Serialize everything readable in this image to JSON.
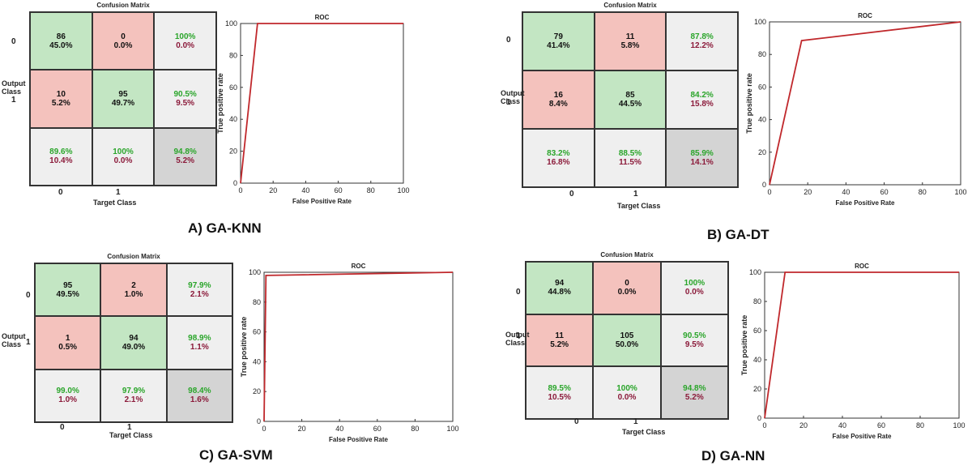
{
  "panels": [
    {
      "caption": "A) GA-KNN",
      "cm": {
        "title": "Confusion Matrix",
        "output_label": "Output Class",
        "target_label": "Target Class",
        "row_labels": [
          "0",
          "1"
        ],
        "col_labels": [
          "0",
          "1"
        ],
        "cells": [
          [
            {
              "a": "86",
              "b": "45.0%"
            },
            {
              "a": "0",
              "b": "0.0%"
            },
            {
              "a": "100%",
              "b": "0.0%"
            }
          ],
          [
            {
              "a": "10",
              "b": "5.2%"
            },
            {
              "a": "95",
              "b": "49.7%"
            },
            {
              "a": "90.5%",
              "b": "9.5%"
            }
          ],
          [
            {
              "a": "89.6%",
              "b": "10.4%"
            },
            {
              "a": "100%",
              "b": "0.0%"
            },
            {
              "a": "94.8%",
              "b": "5.2%"
            }
          ]
        ]
      },
      "roc": {
        "title": "ROC",
        "xlabel": "False Positive Rate",
        "ylabel": "True positive rate",
        "xticks": [
          "0",
          "20",
          "40",
          "60",
          "80",
          "100"
        ],
        "yticks": [
          "0",
          "20",
          "40",
          "60",
          "80",
          "100"
        ]
      }
    },
    {
      "caption": "B) GA-DT",
      "cm": {
        "title": "Confusion Matrix",
        "output_label": "Output Class",
        "target_label": "Target Class",
        "row_labels": [
          "0",
          "1"
        ],
        "col_labels": [
          "0",
          "1"
        ],
        "cells": [
          [
            {
              "a": "79",
              "b": "41.4%"
            },
            {
              "a": "11",
              "b": "5.8%"
            },
            {
              "a": "87.8%",
              "b": "12.2%"
            }
          ],
          [
            {
              "a": "16",
              "b": "8.4%"
            },
            {
              "a": "85",
              "b": "44.5%"
            },
            {
              "a": "84.2%",
              "b": "15.8%"
            }
          ],
          [
            {
              "a": "83.2%",
              "b": "16.8%"
            },
            {
              "a": "88.5%",
              "b": "11.5%"
            },
            {
              "a": "85.9%",
              "b": "14.1%"
            }
          ]
        ]
      },
      "roc": {
        "title": "ROC",
        "xlabel": "False Positive Rate",
        "ylabel": "True positive rate",
        "xticks": [
          "0",
          "20",
          "40",
          "60",
          "80",
          "100"
        ],
        "yticks": [
          "0",
          "20",
          "40",
          "60",
          "80",
          "100"
        ]
      }
    },
    {
      "caption": "C) GA-SVM",
      "cm": {
        "title": "Confusion Matrix",
        "output_label": "Output Class",
        "target_label": "Target Class",
        "row_labels": [
          "0",
          "1"
        ],
        "col_labels": [
          "0",
          "1"
        ],
        "cells": [
          [
            {
              "a": "95",
              "b": "49.5%"
            },
            {
              "a": "2",
              "b": "1.0%"
            },
            {
              "a": "97.9%",
              "b": "2.1%"
            }
          ],
          [
            {
              "a": "1",
              "b": "0.5%"
            },
            {
              "a": "94",
              "b": "49.0%"
            },
            {
              "a": "98.9%",
              "b": "1.1%"
            }
          ],
          [
            {
              "a": "99.0%",
              "b": "1.0%"
            },
            {
              "a": "97.9%",
              "b": "2.1%"
            },
            {
              "a": "98.4%",
              "b": "1.6%"
            }
          ]
        ]
      },
      "roc": {
        "title": "ROC",
        "xlabel": "False Positive Rate",
        "ylabel": "True positive rate",
        "xticks": [
          "0",
          "20",
          "40",
          "60",
          "80",
          "100"
        ],
        "yticks": [
          "0",
          "20",
          "40",
          "60",
          "80",
          "100"
        ]
      }
    },
    {
      "caption": "D) GA-NN",
      "cm": {
        "title": "Confusion Matrix",
        "output_label": "Output Class",
        "target_label": "Target Class",
        "row_labels": [
          "0",
          "1"
        ],
        "col_labels": [
          "0",
          "1"
        ],
        "cells": [
          [
            {
              "a": "94",
              "b": "44.8%"
            },
            {
              "a": "0",
              "b": "0.0%"
            },
            {
              "a": "100%",
              "b": "0.0%"
            }
          ],
          [
            {
              "a": "11",
              "b": "5.2%"
            },
            {
              "a": "105",
              "b": "50.0%"
            },
            {
              "a": "90.5%",
              "b": "9.5%"
            }
          ],
          [
            {
              "a": "89.5%",
              "b": "10.5%"
            },
            {
              "a": "100%",
              "b": "0.0%"
            },
            {
              "a": "94.8%",
              "b": "5.2%"
            }
          ]
        ]
      },
      "roc": {
        "title": "ROC",
        "xlabel": "False Positive Rate",
        "ylabel": "True positive rate",
        "xticks": [
          "0",
          "20",
          "40",
          "60",
          "80",
          "100"
        ],
        "yticks": [
          "0",
          "20",
          "40",
          "60",
          "80",
          "100"
        ]
      }
    }
  ],
  "chart_data": [
    {
      "type": "table",
      "title": "Confusion Matrix",
      "panel": "A) GA-KNN",
      "rows": [
        [
          "86 45.0%",
          "0 0.0%",
          "100% 0.0%"
        ],
        [
          "10 5.2%",
          "95 49.7%",
          "90.5% 9.5%"
        ],
        [
          "89.6% 10.4%",
          "100% 0.0%",
          "94.8% 5.2%"
        ]
      ]
    },
    {
      "type": "line",
      "title": "ROC",
      "panel": "A) GA-KNN",
      "xlabel": "False Positive Rate",
      "ylabel": "True positive rate",
      "xlim": [
        0,
        100
      ],
      "ylim": [
        0,
        100
      ],
      "series": [
        {
          "x": [
            0,
            10.4,
            100
          ],
          "y": [
            0,
            100,
            100
          ]
        }
      ],
      "color": "#c0282c"
    },
    {
      "type": "table",
      "title": "Confusion Matrix",
      "panel": "B) GA-DT",
      "rows": [
        [
          "79 41.4%",
          "11 5.8%",
          "87.8% 12.2%"
        ],
        [
          "16 8.4%",
          "85 44.5%",
          "84.2% 15.8%"
        ],
        [
          "83.2% 16.8%",
          "88.5% 11.5%",
          "85.9% 14.1%"
        ]
      ]
    },
    {
      "type": "line",
      "title": "ROC",
      "panel": "B) GA-DT",
      "xlabel": "False Positive Rate",
      "ylabel": "True positive rate",
      "xlim": [
        0,
        100
      ],
      "ylim": [
        0,
        100
      ],
      "series": [
        {
          "x": [
            0,
            16.8,
            100
          ],
          "y": [
            0,
            88.5,
            100
          ]
        }
      ],
      "color": "#c0282c"
    },
    {
      "type": "table",
      "title": "Confusion Matrix",
      "panel": "C) GA-SVM",
      "rows": [
        [
          "95 49.5%",
          "2 1.0%",
          "97.9% 2.1%"
        ],
        [
          "1 0.5%",
          "94 49.0%",
          "98.9% 1.1%"
        ],
        [
          "99.0% 1.0%",
          "97.9% 2.1%",
          "98.4% 1.6%"
        ]
      ]
    },
    {
      "type": "line",
      "title": "ROC",
      "panel": "C) GA-SVM",
      "xlabel": "False Positive Rate",
      "ylabel": "True positive rate",
      "xlim": [
        0,
        100
      ],
      "ylim": [
        0,
        100
      ],
      "series": [
        {
          "x": [
            0,
            1,
            100
          ],
          "y": [
            0,
            97.9,
            100
          ]
        }
      ],
      "color": "#c0282c"
    },
    {
      "type": "table",
      "title": "Confusion Matrix",
      "panel": "D) GA-NN",
      "rows": [
        [
          "94 44.8%",
          "0 0.0%",
          "100% 0.0%"
        ],
        [
          "11 5.2%",
          "105 50.0%",
          "90.5% 9.5%"
        ],
        [
          "89.5% 10.5%",
          "100% 0.0%",
          "94.8% 5.2%"
        ]
      ]
    },
    {
      "type": "line",
      "title": "ROC",
      "panel": "D) GA-NN",
      "xlabel": "False Positive Rate",
      "ylabel": "True positive rate",
      "xlim": [
        0,
        100
      ],
      "ylim": [
        0,
        100
      ],
      "series": [
        {
          "x": [
            0,
            10.5,
            100
          ],
          "y": [
            0,
            100,
            100
          ]
        }
      ],
      "color": "#c0282c"
    }
  ]
}
